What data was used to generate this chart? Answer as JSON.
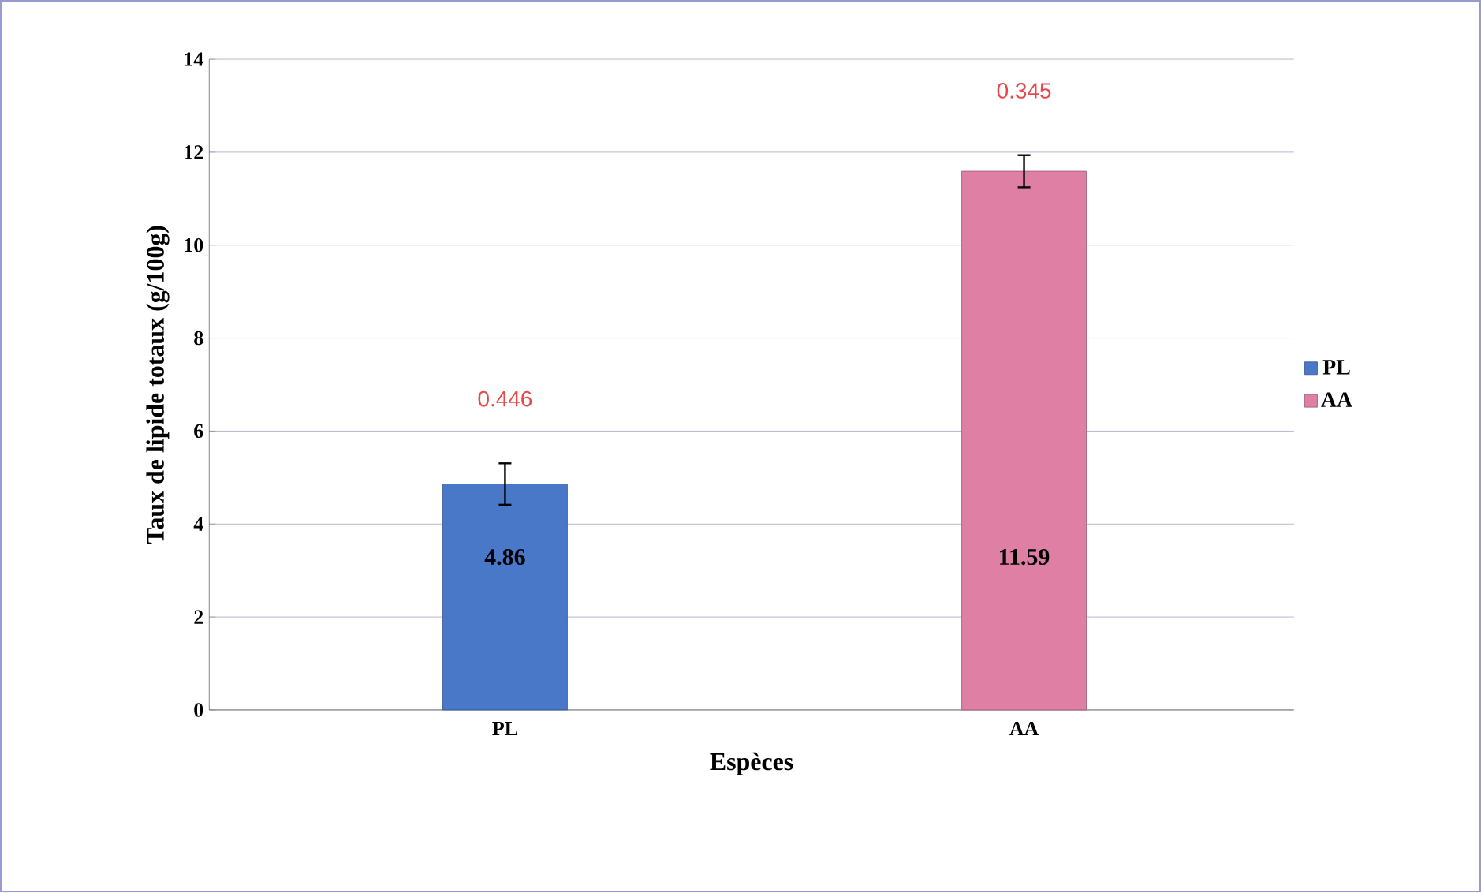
{
  "chart_data": {
    "type": "bar",
    "xlabel": "Espèces",
    "ylabel": "Taux de lipide totaux (g/100g)",
    "categories": [
      "PL",
      "AA"
    ],
    "series": [
      {
        "name": "PL",
        "color": "#4a78c8",
        "values": [
          4.86,
          null
        ],
        "errors": [
          0.446,
          null
        ]
      },
      {
        "name": "AA",
        "color": "#de7fa3",
        "values": [
          null,
          11.59
        ],
        "errors": [
          null,
          0.345
        ]
      }
    ],
    "annotations": [
      "0.446",
      "0.345"
    ],
    "ylim": [
      0,
      14
    ],
    "yticks": [
      0,
      2,
      4,
      6,
      8,
      10,
      12,
      14
    ],
    "grid": "y",
    "legend": "right",
    "data_labels": true
  }
}
